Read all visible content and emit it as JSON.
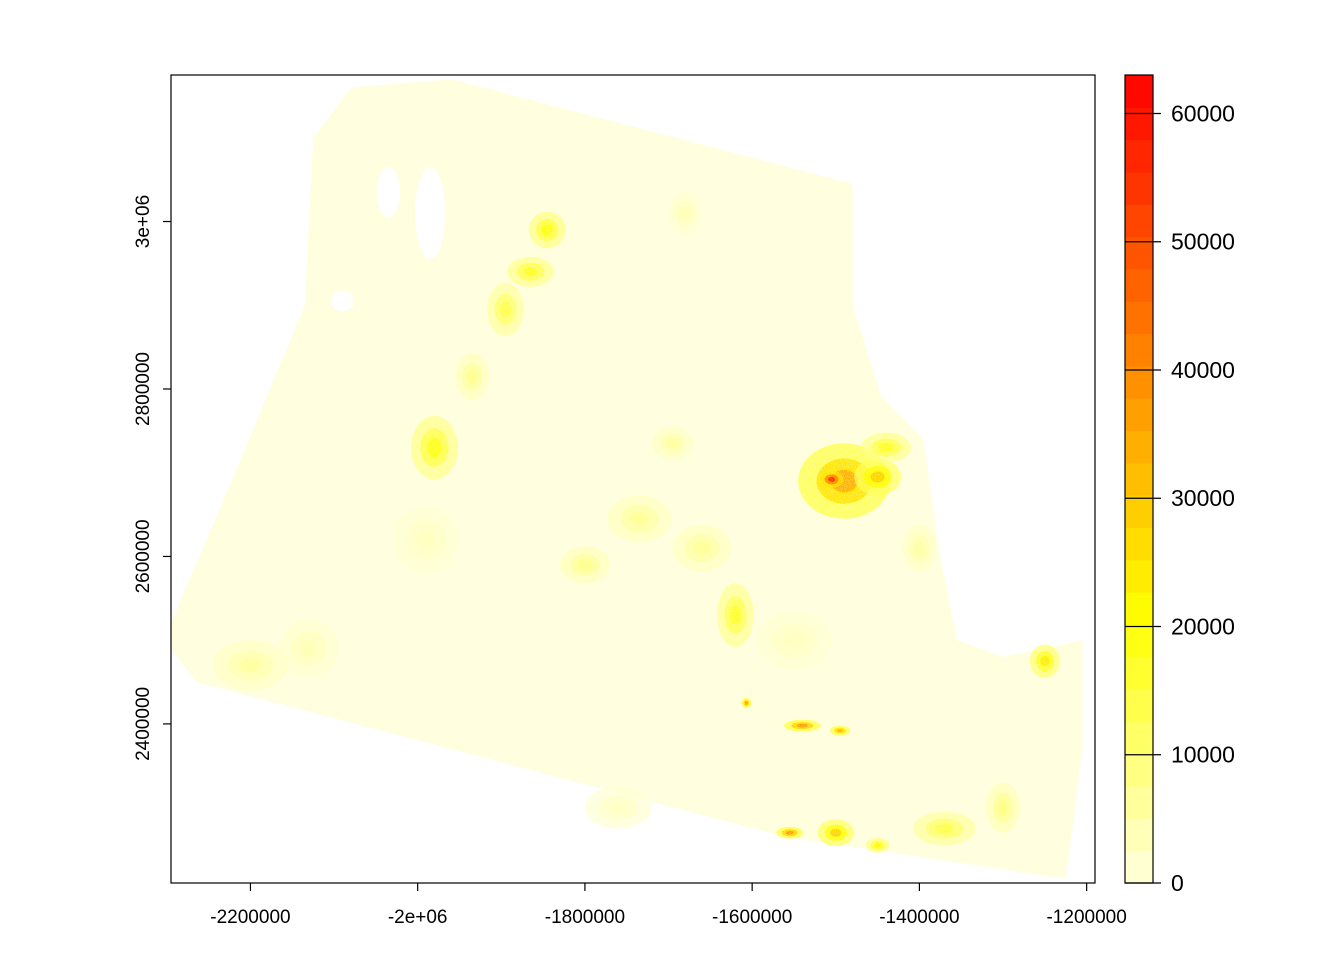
{
  "chart_data": {
    "type": "heatmap",
    "title": "",
    "xlabel": "",
    "ylabel": "",
    "xlim": [
      -2295000,
      -1190000
    ],
    "ylim": [
      2210000,
      3175000
    ],
    "x_ticks": [
      -2200000,
      -2000000,
      -1800000,
      -1600000,
      -1400000,
      -1200000
    ],
    "x_tick_labels": [
      "-2200000",
      "-2e+06",
      "-1800000",
      "-1600000",
      "-1400000",
      "-1200000"
    ],
    "y_ticks": [
      2400000,
      2600000,
      2800000,
      3000000
    ],
    "y_tick_labels": [
      "2400000",
      "2600000",
      "2800000",
      "3e+06"
    ],
    "colorbar": {
      "min": 0,
      "max": 63000,
      "ticks": [
        0,
        10000,
        20000,
        30000,
        40000,
        50000,
        60000
      ],
      "tick_labels": [
        "0",
        "10000",
        "20000",
        "30000",
        "40000",
        "50000",
        "60000"
      ],
      "low_color": "#ffffe0",
      "mid_color": "#ffff00",
      "high_color": "#ff0000",
      "levels": 25
    },
    "background_color": "#ffffe0",
    "boundary": [
      [
        -2125000,
        3100000
      ],
      [
        -2080000,
        3160000
      ],
      [
        -1960000,
        3170000
      ],
      [
        -1480000,
        3045000
      ],
      [
        -1480000,
        2900000
      ],
      [
        -1445000,
        2790000
      ],
      [
        -1395000,
        2740000
      ],
      [
        -1375000,
        2600000
      ],
      [
        -1355000,
        2500000
      ],
      [
        -1300000,
        2480000
      ],
      [
        -1205000,
        2500000
      ],
      [
        -1205000,
        2370000
      ],
      [
        -1225000,
        2215000
      ],
      [
        -1560000,
        2265000
      ],
      [
        -2265000,
        2450000
      ],
      [
        -2295000,
        2490000
      ],
      [
        -2295000,
        2520000
      ],
      [
        -2210000,
        2720000
      ],
      [
        -2135000,
        2900000
      ]
    ],
    "hotspots": [
      {
        "x": -1490000,
        "y": 2690000,
        "rx": 55000,
        "ry": 45000,
        "value": 34000
      },
      {
        "x": -1505000,
        "y": 2692000,
        "rx": 14000,
        "ry": 10000,
        "value": 55000
      },
      {
        "x": -1450000,
        "y": 2695000,
        "rx": 28000,
        "ry": 22000,
        "value": 28000
      },
      {
        "x": -1440000,
        "y": 2730000,
        "rx": 30000,
        "ry": 18000,
        "value": 18000
      },
      {
        "x": -1845000,
        "y": 2990000,
        "rx": 22000,
        "ry": 22000,
        "value": 20000
      },
      {
        "x": -1865000,
        "y": 2940000,
        "rx": 28000,
        "ry": 18000,
        "value": 18000
      },
      {
        "x": -1895000,
        "y": 2895000,
        "rx": 22000,
        "ry": 32000,
        "value": 14000
      },
      {
        "x": -1935000,
        "y": 2815000,
        "rx": 20000,
        "ry": 28000,
        "value": 8000
      },
      {
        "x": -1980000,
        "y": 2730000,
        "rx": 28000,
        "ry": 38000,
        "value": 19000
      },
      {
        "x": -1620000,
        "y": 2530000,
        "rx": 22000,
        "ry": 38000,
        "value": 17000
      },
      {
        "x": -1540000,
        "y": 2398000,
        "rx": 22000,
        "ry": 7000,
        "value": 38000
      },
      {
        "x": -1495000,
        "y": 2392000,
        "rx": 12000,
        "ry": 6000,
        "value": 34000
      },
      {
        "x": -1607000,
        "y": 2425000,
        "rx": 6000,
        "ry": 6000,
        "value": 38000
      },
      {
        "x": -1250000,
        "y": 2475000,
        "rx": 18000,
        "ry": 20000,
        "value": 24000
      },
      {
        "x": -1555000,
        "y": 2270000,
        "rx": 16000,
        "ry": 7000,
        "value": 38000
      },
      {
        "x": -1500000,
        "y": 2270000,
        "rx": 22000,
        "ry": 16000,
        "value": 28000
      },
      {
        "x": -1450000,
        "y": 2255000,
        "rx": 14000,
        "ry": 9000,
        "value": 22000
      },
      {
        "x": -1370000,
        "y": 2275000,
        "rx": 38000,
        "ry": 20000,
        "value": 14000
      },
      {
        "x": -1300000,
        "y": 2300000,
        "rx": 20000,
        "ry": 30000,
        "value": 9000
      },
      {
        "x": -1735000,
        "y": 2645000,
        "rx": 38000,
        "ry": 28000,
        "value": 7000
      },
      {
        "x": -1660000,
        "y": 2610000,
        "rx": 35000,
        "ry": 28000,
        "value": 7000
      },
      {
        "x": -1800000,
        "y": 2590000,
        "rx": 30000,
        "ry": 22000,
        "value": 8000
      },
      {
        "x": -1695000,
        "y": 2735000,
        "rx": 25000,
        "ry": 20000,
        "value": 6000
      },
      {
        "x": -1680000,
        "y": 3010000,
        "rx": 20000,
        "ry": 25000,
        "value": 4000
      },
      {
        "x": -1400000,
        "y": 2610000,
        "rx": 20000,
        "ry": 28000,
        "value": 6000
      },
      {
        "x": -2200000,
        "y": 2470000,
        "rx": 45000,
        "ry": 30000,
        "value": 6000
      },
      {
        "x": -2130000,
        "y": 2490000,
        "rx": 35000,
        "ry": 35000,
        "value": 4000
      },
      {
        "x": -1760000,
        "y": 2300000,
        "rx": 40000,
        "ry": 25000,
        "value": 3000
      },
      {
        "x": -1550000,
        "y": 2500000,
        "rx": 45000,
        "ry": 35000,
        "value": 3000
      },
      {
        "x": -1990000,
        "y": 2620000,
        "rx": 40000,
        "ry": 40000,
        "value": 3000
      }
    ],
    "voids": [
      {
        "x": -1985000,
        "y": 3010000,
        "rx": 18000,
        "ry": 55000
      },
      {
        "x": -2035000,
        "y": 3035000,
        "rx": 14000,
        "ry": 30000
      },
      {
        "x": -2090000,
        "y": 2905000,
        "rx": 14000,
        "ry": 12000
      }
    ]
  }
}
